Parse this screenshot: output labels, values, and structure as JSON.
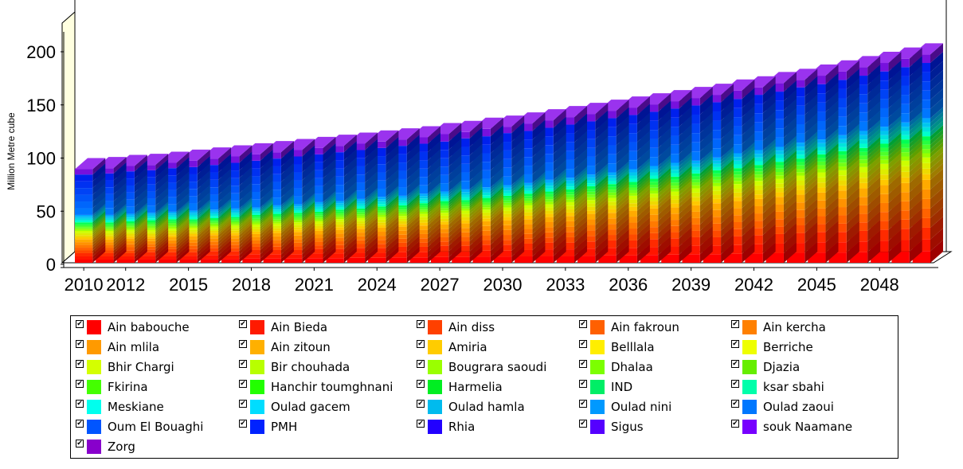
{
  "chart_data": {
    "type": "bar",
    "stacked": true,
    "style": "3d",
    "title": "",
    "xlabel": "",
    "ylabel": "Million Metre cube",
    "ylim": [
      0,
      230
    ],
    "yticks": [
      "0",
      "50",
      "100",
      "150",
      "200"
    ],
    "x_tick_labels": [
      "2010",
      "2012",
      "2015",
      "2018",
      "2021",
      "2024",
      "2027",
      "2030",
      "2033",
      "2036",
      "2039",
      "2042",
      "2045",
      "2048"
    ],
    "x_tick_years": [
      2010,
      2012,
      2015,
      2018,
      2021,
      2024,
      2027,
      2030,
      2033,
      2036,
      2039,
      2042,
      2045,
      2048
    ],
    "categories": [
      2010,
      2011,
      2012,
      2013,
      2014,
      2015,
      2016,
      2017,
      2018,
      2019,
      2020,
      2021,
      2022,
      2023,
      2024,
      2025,
      2026,
      2027,
      2028,
      2029,
      2030,
      2031,
      2032,
      2033,
      2034,
      2035,
      2036,
      2037,
      2038,
      2039,
      2040,
      2041,
      2042,
      2043,
      2044,
      2045,
      2046,
      2047,
      2048,
      2049,
      2050
    ],
    "totals": [
      88,
      89,
      91,
      92,
      94,
      96,
      98,
      100,
      102,
      104,
      106,
      108,
      110,
      112,
      114,
      116,
      118,
      121,
      123,
      126,
      128,
      131,
      134,
      137,
      140,
      143,
      146,
      149,
      152,
      155,
      158,
      162,
      165,
      169,
      172,
      176,
      180,
      184,
      188,
      192,
      196
    ],
    "band_tops": {
      "red": [
        9,
        9,
        9,
        10,
        10,
        10,
        11,
        11,
        12,
        12,
        12,
        13,
        13,
        14,
        14,
        15,
        15,
        16,
        16,
        17,
        17,
        18,
        19,
        19,
        20,
        21,
        21,
        22,
        23,
        24,
        24,
        25,
        26,
        27,
        28,
        29,
        29,
        30,
        31,
        32,
        33
      ],
      "orange": [
        22,
        22,
        23,
        23,
        24,
        25,
        26,
        26,
        27,
        28,
        29,
        30,
        31,
        32,
        33,
        34,
        35,
        36,
        37,
        39,
        40,
        41,
        43,
        44,
        46,
        47,
        49,
        51,
        52,
        54,
        56,
        58,
        60,
        62,
        64,
        66,
        68,
        70,
        73,
        75,
        78
      ],
      "yellow": [
        30,
        30,
        31,
        31,
        32,
        33,
        34,
        35,
        36,
        37,
        38,
        39,
        41,
        42,
        43,
        44,
        46,
        47,
        49,
        50,
        52,
        54,
        55,
        57,
        59,
        61,
        63,
        65,
        67,
        70,
        72,
        74,
        77,
        79,
        82,
        85,
        87,
        90,
        93,
        96,
        99
      ],
      "green": [
        38,
        38,
        39,
        40,
        41,
        41,
        42,
        43,
        45,
        46,
        47,
        48,
        50,
        51,
        53,
        54,
        56,
        58,
        59,
        61,
        63,
        65,
        67,
        69,
        72,
        74,
        76,
        79,
        81,
        84,
        87,
        89,
        92,
        95,
        98,
        102,
        105,
        108,
        112,
        116,
        119
      ],
      "cyan": [
        45,
        45,
        46,
        47,
        48,
        49,
        50,
        51,
        52,
        54,
        55,
        57,
        58,
        60,
        62,
        63,
        65,
        67,
        69,
        71,
        73,
        75,
        78,
        80,
        83,
        85,
        88,
        91,
        94,
        96,
        99,
        103,
        106,
        109,
        113,
        116,
        120,
        124,
        128,
        132,
        136
      ],
      "blue": [
        83,
        84,
        86,
        87,
        89,
        90,
        92,
        94,
        96,
        98,
        100,
        102,
        104,
        106,
        108,
        110,
        112,
        114,
        117,
        119,
        122,
        124,
        127,
        130,
        133,
        136,
        139,
        142,
        145,
        148,
        151,
        154,
        158,
        161,
        165,
        168,
        172,
        176,
        180,
        184,
        188
      ]
    },
    "series_names": [
      "Ain babouche",
      "Ain Bieda",
      "Ain diss",
      "Ain fakroun",
      "Ain kercha",
      "Ain mlila",
      "Ain zitoun",
      "Amiria",
      "Belllala",
      "Berriche",
      "Bhir Chargi",
      "Bir chouhada",
      "Bougrara saoudi",
      "Dhalaa",
      "Djazia",
      "Fkirina",
      "Hanchir toumghnani",
      "Harmelia",
      "IND",
      "ksar sbahi",
      "Meskiane",
      "Oulad gacem",
      "Oulad hamla",
      "Oulad nini",
      "Oulad zaoui",
      "Oum El Bouaghi",
      "PMH",
      "Rhia",
      "Sigus",
      "souk Naamane",
      "Zorg"
    ],
    "series_colors": [
      "#ff0000",
      "#ff1a00",
      "#ff4000",
      "#ff6000",
      "#ff8000",
      "#ff9a00",
      "#ffb000",
      "#ffcc00",
      "#ffee00",
      "#eeff00",
      "#d4ff00",
      "#b8ff00",
      "#9aff00",
      "#7cff00",
      "#66ee00",
      "#44ff00",
      "#22ff00",
      "#00ee22",
      "#00ee66",
      "#00ffaa",
      "#00ffee",
      "#00ddff",
      "#00bbee",
      "#0099ff",
      "#0077ff",
      "#0055ff",
      "#0022ff",
      "#2200ff",
      "#5500ff",
      "#7700ff",
      "#8800cc"
    ],
    "legend_position": "bottom",
    "grid": false
  }
}
